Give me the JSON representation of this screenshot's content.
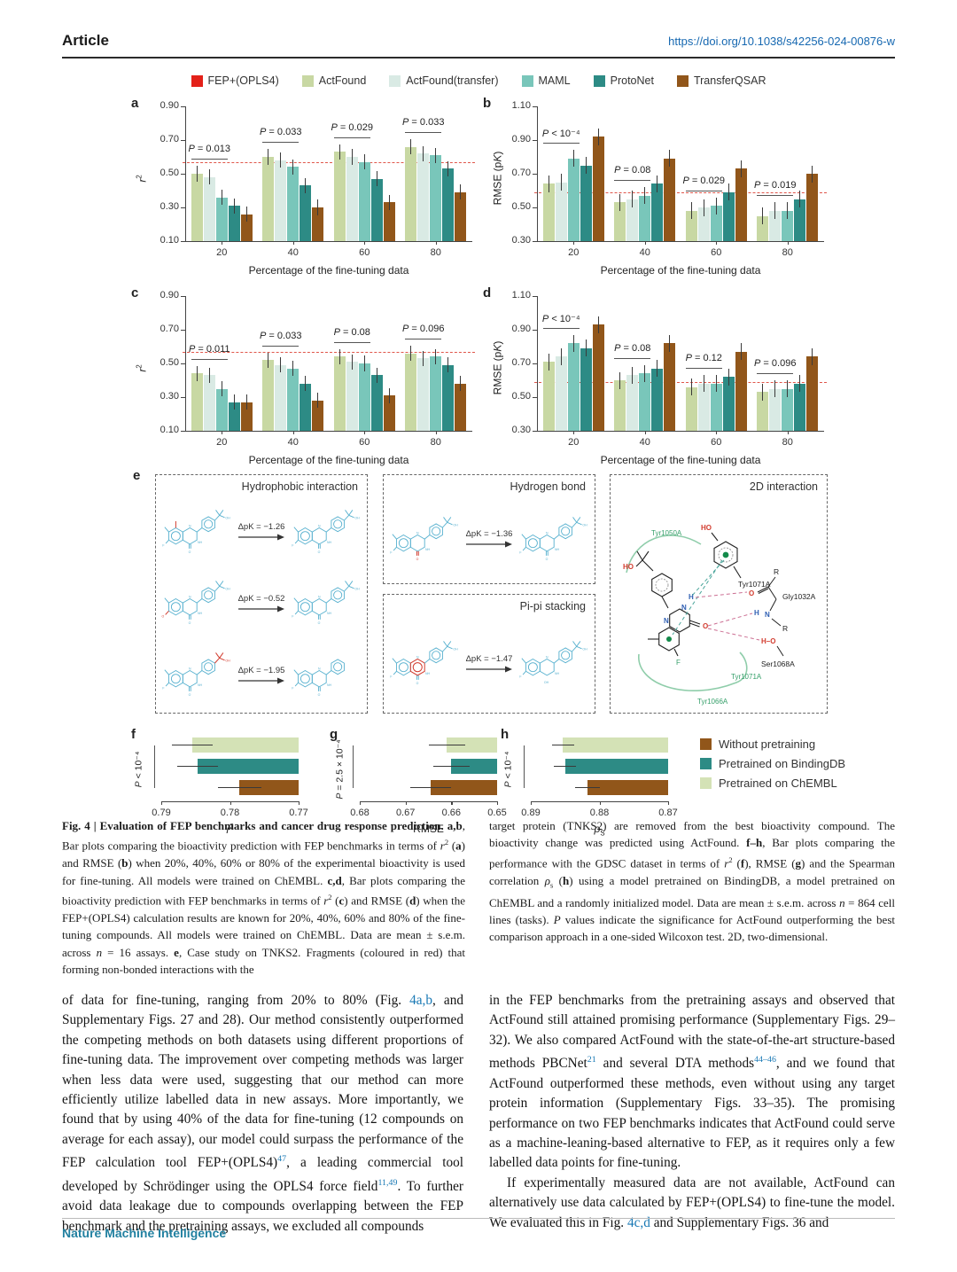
{
  "header": {
    "article_label": "Article",
    "doi": "https://doi.org/10.1038/s42256-024-00876-w"
  },
  "footer": {
    "journal": "Nature Machine Intelligence"
  },
  "colors": {
    "fep_red": "#e32119",
    "actfound": "#c8d8a3",
    "actfound_transfer": "#d9eae4",
    "maml": "#79c6ba",
    "protonet": "#2d8b85",
    "transferqsar": "#91561a",
    "chembl_light": "#d4e2b6",
    "dashed_line": "#e0564a",
    "link_blue": "#1878b4"
  },
  "legend_top": {
    "items": [
      {
        "label": "FEP+(OPLS4)",
        "color": "#e32119"
      },
      {
        "label": "ActFound",
        "color": "#c8d8a3"
      },
      {
        "label": "ActFound(transfer)",
        "color": "#d9eae4"
      },
      {
        "label": "MAML",
        "color": "#79c6ba"
      },
      {
        "label": "ProtoNet",
        "color": "#2d8b85"
      },
      {
        "label": "TransferQSAR",
        "color": "#91561a"
      }
    ]
  },
  "chart_data": [
    {
      "id": "a",
      "type": "grouped_bar",
      "panel_letter": "a",
      "ylabel_segments": [
        {
          "t": "r",
          "s": "i"
        },
        {
          "t": "2",
          "s": "sup"
        }
      ],
      "xlabel": "Percentage of the fine-tuning data",
      "ymin": 0.1,
      "ymax": 0.9,
      "yticks": [
        0.9,
        0.7,
        0.5,
        0.3,
        0.1
      ],
      "categories": [
        "20",
        "40",
        "60",
        "80"
      ],
      "series_names": [
        "ActFound",
        "ActFound(transfer)",
        "MAML",
        "ProtoNet",
        "TransferQSAR"
      ],
      "series_colors": [
        "#c8d8a3",
        "#d9eae4",
        "#79c6ba",
        "#2d8b85",
        "#91561a"
      ],
      "values": [
        [
          0.5,
          0.48,
          0.36,
          0.31,
          0.26
        ],
        [
          0.6,
          0.58,
          0.54,
          0.43,
          0.3
        ],
        [
          0.63,
          0.6,
          0.57,
          0.47,
          0.33
        ],
        [
          0.66,
          0.62,
          0.61,
          0.53,
          0.39
        ]
      ],
      "err": 0.045,
      "dashed_line": 0.57,
      "p_values": [
        "P = 0.013",
        "P = 0.033",
        "P = 0.029",
        "P = 0.033"
      ]
    },
    {
      "id": "b",
      "type": "grouped_bar",
      "panel_letter": "b",
      "ylabel_segments": [
        {
          "t": "RMSE (p"
        },
        {
          "t": "K",
          "s": "i"
        },
        {
          "t": ")"
        }
      ],
      "xlabel": "Percentage of the fine-tuning data",
      "ymin": 0.3,
      "ymax": 1.1,
      "yticks": [
        1.1,
        0.9,
        0.7,
        0.5,
        0.3
      ],
      "categories": [
        "20",
        "40",
        "60",
        "80"
      ],
      "series_names": [
        "ActFound",
        "ActFound(transfer)",
        "MAML",
        "ProtoNet",
        "TransferQSAR"
      ],
      "series_colors": [
        "#c8d8a3",
        "#d9eae4",
        "#79c6ba",
        "#2d8b85",
        "#91561a"
      ],
      "values": [
        [
          0.64,
          0.65,
          0.79,
          0.75,
          0.92
        ],
        [
          0.53,
          0.55,
          0.57,
          0.64,
          0.79
        ],
        [
          0.48,
          0.5,
          0.51,
          0.59,
          0.73
        ],
        [
          0.45,
          0.48,
          0.48,
          0.55,
          0.7
        ]
      ],
      "err": 0.05,
      "dashed_line": 0.59,
      "p_values": [
        "P < 10⁻⁴",
        "P = 0.08",
        "P = 0.029",
        "P = 0.019"
      ]
    },
    {
      "id": "c",
      "type": "grouped_bar",
      "panel_letter": "c",
      "ylabel_segments": [
        {
          "t": "r",
          "s": "i"
        },
        {
          "t": "2",
          "s": "sup"
        }
      ],
      "xlabel": "Percentage of the fine-tuning data",
      "ymin": 0.1,
      "ymax": 0.9,
      "yticks": [
        0.9,
        0.7,
        0.5,
        0.3,
        0.1
      ],
      "categories": [
        "20",
        "40",
        "60",
        "80"
      ],
      "series_names": [
        "ActFound",
        "ActFound(transfer)",
        "MAML",
        "ProtoNet",
        "TransferQSAR"
      ],
      "series_colors": [
        "#c8d8a3",
        "#d9eae4",
        "#79c6ba",
        "#2d8b85",
        "#91561a"
      ],
      "values": [
        [
          0.44,
          0.43,
          0.35,
          0.27,
          0.27
        ],
        [
          0.52,
          0.49,
          0.47,
          0.38,
          0.28
        ],
        [
          0.54,
          0.51,
          0.5,
          0.43,
          0.31
        ],
        [
          0.56,
          0.53,
          0.54,
          0.49,
          0.38
        ]
      ],
      "err": 0.045,
      "dashed_line": 0.57,
      "p_values": [
        "P = 0.011",
        "P = 0.033",
        "P = 0.08",
        "P = 0.096"
      ]
    },
    {
      "id": "d",
      "type": "grouped_bar",
      "panel_letter": "d",
      "ylabel_segments": [
        {
          "t": "RMSE (p"
        },
        {
          "t": "K",
          "s": "i"
        },
        {
          "t": ")"
        }
      ],
      "xlabel": "Percentage of the fine-tuning data",
      "ymin": 0.3,
      "ymax": 1.1,
      "yticks": [
        1.1,
        0.9,
        0.7,
        0.5,
        0.3
      ],
      "categories": [
        "20",
        "40",
        "60",
        "80"
      ],
      "series_names": [
        "ActFound",
        "ActFound(transfer)",
        "MAML",
        "ProtoNet",
        "TransferQSAR"
      ],
      "series_colors": [
        "#c8d8a3",
        "#d9eae4",
        "#79c6ba",
        "#2d8b85",
        "#91561a"
      ],
      "values": [
        [
          0.71,
          0.74,
          0.82,
          0.79,
          0.93
        ],
        [
          0.6,
          0.63,
          0.64,
          0.67,
          0.82
        ],
        [
          0.56,
          0.58,
          0.58,
          0.62,
          0.77
        ],
        [
          0.53,
          0.55,
          0.55,
          0.58,
          0.74
        ]
      ],
      "err": 0.05,
      "dashed_line": 0.59,
      "p_values": [
        "P < 10⁻⁴",
        "P = 0.08",
        "P = 0.12",
        "P = 0.096"
      ]
    },
    {
      "id": "f",
      "type": "hbar",
      "panel_letter": "f",
      "p_segments": [
        {
          "t": "P",
          "s": "i"
        },
        {
          "t": " < 10⁻⁴"
        }
      ],
      "xlabel_segments": [
        {
          "t": "r",
          "s": "i"
        },
        {
          "t": "2",
          "s": "sup"
        }
      ],
      "axis_left": 0.79,
      "axis_right": 0.77,
      "ticks": [
        0.79,
        0.78,
        0.77
      ],
      "bars": [
        {
          "name": "Pretrained on ChEMBL",
          "value": 0.7855,
          "err": 0.003,
          "color": "#d4e2b6"
        },
        {
          "name": "Pretrained on BindingDB",
          "value": 0.7847,
          "err": 0.003,
          "color": "#2d8b85"
        },
        {
          "name": "Without pretraining",
          "value": 0.7786,
          "err": 0.0032,
          "color": "#91561a"
        }
      ]
    },
    {
      "id": "g",
      "type": "hbar",
      "panel_letter": "g",
      "p_segments": [
        {
          "t": "P",
          "s": "i"
        },
        {
          "t": " = 2.5 × 10⁻⁴"
        }
      ],
      "xlabel_segments": [
        {
          "t": "RMSE"
        }
      ],
      "axis_left": 0.68,
      "axis_right": 0.65,
      "ticks": [
        0.68,
        0.67,
        0.66,
        0.65
      ],
      "bars": [
        {
          "name": "Pretrained on ChEMBL",
          "value": 0.661,
          "err": 0.004,
          "color": "#d4e2b6"
        },
        {
          "name": "Pretrained on BindingDB",
          "value": 0.66,
          "err": 0.004,
          "color": "#2d8b85"
        },
        {
          "name": "Without pretraining",
          "value": 0.6645,
          "err": 0.0045,
          "color": "#91561a"
        }
      ]
    },
    {
      "id": "h",
      "type": "hbar",
      "panel_letter": "h",
      "p_segments": [
        {
          "t": "P",
          "s": "i"
        },
        {
          "t": " < 10⁻⁴"
        }
      ],
      "xlabel_segments": [
        {
          "t": "ρ",
          "s": "i"
        },
        {
          "t": "S",
          "s": "sub"
        }
      ],
      "axis_left": 0.89,
      "axis_right": 0.87,
      "ticks": [
        0.89,
        0.88,
        0.87
      ],
      "bars": [
        {
          "name": "Pretrained on ChEMBL",
          "value": 0.8853,
          "err": 0.0016,
          "color": "#d4e2b6"
        },
        {
          "name": "Pretrained on BindingDB",
          "value": 0.885,
          "err": 0.0016,
          "color": "#2d8b85"
        },
        {
          "name": "Without pretraining",
          "value": 0.8817,
          "err": 0.0018,
          "color": "#91561a"
        }
      ]
    }
  ],
  "panel_e": {
    "label": "e",
    "hydrophobic": {
      "title": "Hydrophobic interaction",
      "reactions": [
        {
          "dpk": "ΔpK = −1.26",
          "highlight": "top-methyl"
        },
        {
          "dpk": "ΔpK = −0.52",
          "highlight": "left-O"
        },
        {
          "dpk": "ΔpK = −1.95",
          "highlight": "tail"
        }
      ]
    },
    "hbond": {
      "title": "Hydrogen bond",
      "reactions": [
        {
          "dpk": "ΔpK = −1.36",
          "highlight": "carbonyl"
        }
      ]
    },
    "pipi": {
      "title": "Pi-pi stacking",
      "reactions": [
        {
          "dpk": "ΔpK = −1.47",
          "highlight": "ring"
        }
      ]
    },
    "interaction2d": {
      "title": "2D interaction",
      "t1050": "Tyr1050A",
      "t1071_black": "Tyr1071A",
      "gly": "Gly1032A",
      "ser": "Ser1068A",
      "t1071_green": "Tyr1071A",
      "t1066": "Tyr1066A",
      "ho1": "HO",
      "ho2": "HO",
      "o1": "O",
      "o2": "O",
      "n1": "N",
      "n2": "N",
      "h1": "H",
      "h2": "H",
      "ngly": "N",
      "r1": "R",
      "r2": "R",
      "hoser": "H–O",
      "f": "F"
    }
  },
  "legend_fgh": {
    "items": [
      {
        "label": "Without pretraining",
        "color": "#91561a"
      },
      {
        "label": "Pretrained on BindingDB",
        "color": "#2d8b85"
      },
      {
        "label": "Pretrained on ChEMBL",
        "color": "#d4e2b6"
      }
    ]
  },
  "caption": {
    "left_segments": [
      {
        "t": "Fig. 4 | Evaluation of FEP benchmarks and cancer drug response prediction. ",
        "s": "b"
      },
      {
        "t": "a,b",
        "s": "b"
      },
      {
        "t": ", Bar plots comparing the bioactivity prediction with FEP benchmarks in terms of "
      },
      {
        "t": "r",
        "s": "i"
      },
      {
        "t": "2",
        "s": "sup"
      },
      {
        "t": " ("
      },
      {
        "t": "a",
        "s": "b"
      },
      {
        "t": ") and RMSE ("
      },
      {
        "t": "b",
        "s": "b"
      },
      {
        "t": ") when 20%, 40%, 60% or 80% of the experimental bioactivity is used for fine-tuning. All models were trained on ChEMBL. "
      },
      {
        "t": "c,d",
        "s": "b"
      },
      {
        "t": ", Bar plots comparing the bioactivity prediction with FEP benchmarks in terms of "
      },
      {
        "t": "r",
        "s": "i"
      },
      {
        "t": "2",
        "s": "sup"
      },
      {
        "t": " ("
      },
      {
        "t": "c",
        "s": "b"
      },
      {
        "t": ") and RMSE ("
      },
      {
        "t": "d",
        "s": "b"
      },
      {
        "t": ") when the FEP+(OPLS4) calculation results are known for 20%, 40%, 60% and 80% of the fine-tuning compounds. All models were trained on ChEMBL. Data are mean ± s.e.m. across "
      },
      {
        "t": "n",
        "s": "i"
      },
      {
        "t": " = 16 assays. "
      },
      {
        "t": "e",
        "s": "b"
      },
      {
        "t": ", Case study on TNKS2. Fragments (coloured in red) that forming non-bonded interactions with the"
      }
    ],
    "right_segments": [
      {
        "t": "target protein (TNKS2) are removed from the best bioactivity compound. The bioactivity change was predicted using ActFound. "
      },
      {
        "t": "f–h",
        "s": "b"
      },
      {
        "t": ", Bar plots comparing the performance with the GDSC dataset in terms of "
      },
      {
        "t": "r",
        "s": "i"
      },
      {
        "t": "2",
        "s": "sup"
      },
      {
        "t": " ("
      },
      {
        "t": "f",
        "s": "b"
      },
      {
        "t": "), RMSE ("
      },
      {
        "t": "g",
        "s": "b"
      },
      {
        "t": ") and the Spearman correlation "
      },
      {
        "t": "ρ",
        "s": "i"
      },
      {
        "t": "s",
        "s": "sub"
      },
      {
        "t": " ("
      },
      {
        "t": "h",
        "s": "b"
      },
      {
        "t": ") using a model pretrained on BindingDB, a model pretrained on ChEMBL and a randomly initialized model. Data are mean ± s.e.m. across "
      },
      {
        "t": "n",
        "s": "i"
      },
      {
        "t": " = 864 cell lines (tasks). "
      },
      {
        "t": "P",
        "s": "i"
      },
      {
        "t": " values indicate the significance for ActFound outperforming the best comparison approach in a one-sided Wilcoxon test. 2D, two-dimensional."
      }
    ]
  },
  "body": {
    "left_segments": [
      {
        "t": "of data for fine-tuning, ranging from 20% to 80% (Fig. "
      },
      {
        "t": "4a,b",
        "s": "link"
      },
      {
        "t": ", and Supplementary Figs. 27 and 28). Our method consistently outperformed the competing methods on both datasets using different proportions of fine-tuning data. The improvement over competing methods was larger when less data were used, suggesting that our method can more efficiently utilize labelled data in new assays. More importantly, we found that by using 40% of the data for fine-tuning (12 compounds on average for each assay), our model could surpass the performance of the FEP calculation tool FEP+(OPLS4)"
      },
      {
        "t": "47",
        "s": "sup link"
      },
      {
        "t": ", a leading commercial tool developed by Schrödinger using the OPLS4 force field"
      },
      {
        "t": "11,49",
        "s": "sup link"
      },
      {
        "t": ". To further avoid data leakage due to compounds overlapping between the FEP benchmark and the pretraining assays, we excluded all compounds"
      }
    ],
    "right_p1_segments": [
      {
        "t": "in the FEP benchmarks from the pretraining assays and observed that ActFound still attained promising performance (Supplementary Figs. 29–32). We also compared ActFound with the state-of-the-art structure-based methods PBCNet"
      },
      {
        "t": "21",
        "s": "sup link"
      },
      {
        "t": " and several DTA methods"
      },
      {
        "t": "44–46",
        "s": "sup link"
      },
      {
        "t": ", and we found that ActFound outperformed these methods, even without using any target protein information (Supplementary Figs. 33–35). The promising performance on two FEP benchmarks indicates that ActFound could serve as a machine-leaning-based alternative to FEP, as it requires only a few labelled data points for fine-tuning."
      }
    ],
    "right_p2_segments": [
      {
        "t": "If experimentally measured data are not available, ActFound can alternatively use data calculated by FEP+(OPLS4) to fine-tune the model. We evaluated this in Fig. "
      },
      {
        "t": "4c,d",
        "s": "link"
      },
      {
        "t": " and Supplementary Figs. 36 and"
      }
    ]
  }
}
